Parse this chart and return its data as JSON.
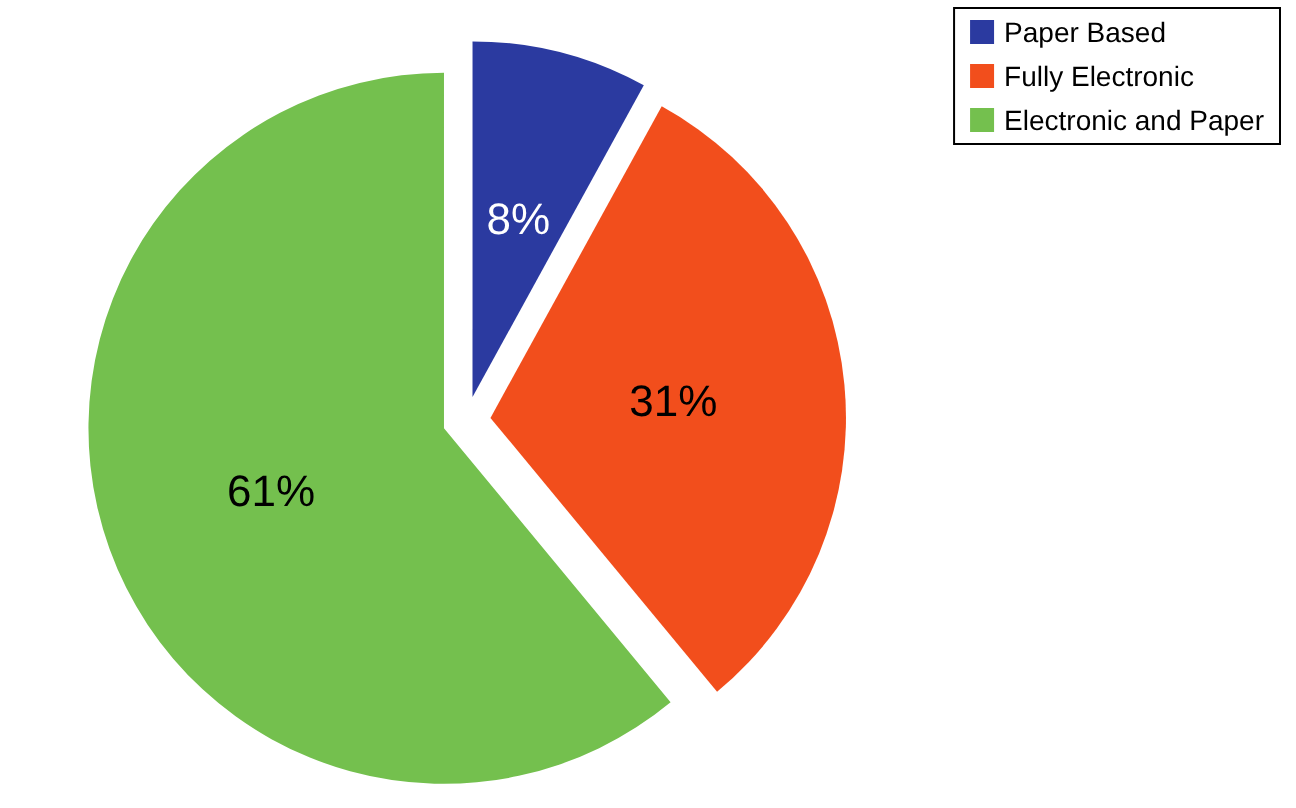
{
  "chart_data": {
    "type": "pie",
    "categories": [
      "Paper Based",
      "Fully Electronic",
      "Electronic and Paper"
    ],
    "values": [
      8,
      31,
      61
    ],
    "colors": [
      "#2b3aa0",
      "#f24e1c",
      "#74c04e"
    ],
    "value_labels": [
      "8%",
      "31%",
      "61%"
    ],
    "legend": "top right"
  }
}
